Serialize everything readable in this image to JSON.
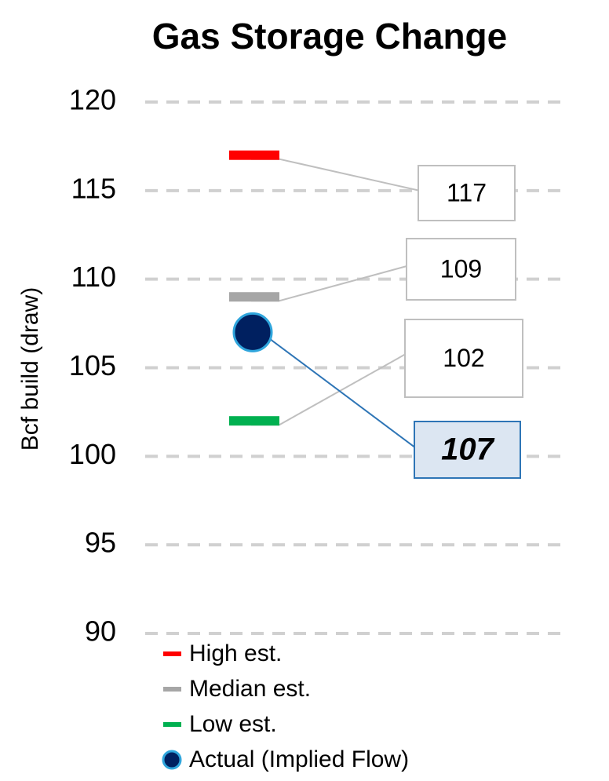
{
  "chart_data": {
    "type": "estimate-range",
    "title": "Gas Storage Change",
    "y_label": "Bcf build (draw)",
    "ylim": [
      90,
      120
    ],
    "yticks": [
      90,
      95,
      100,
      105,
      110,
      115,
      120
    ],
    "grid": true,
    "series": [
      {
        "name": "High est.",
        "color": "#ff0000",
        "marker": "dash",
        "values": [
          117
        ]
      },
      {
        "name": "Median est.",
        "color": "#a6a6a6",
        "marker": "dash",
        "values": [
          109
        ]
      },
      {
        "name": "Low est.",
        "color": "#00b050",
        "marker": "dash",
        "values": [
          102
        ]
      },
      {
        "name": "Actual (Implied Flow)",
        "color": "#002060",
        "marker": "circle",
        "values": [
          107
        ]
      }
    ]
  }
}
